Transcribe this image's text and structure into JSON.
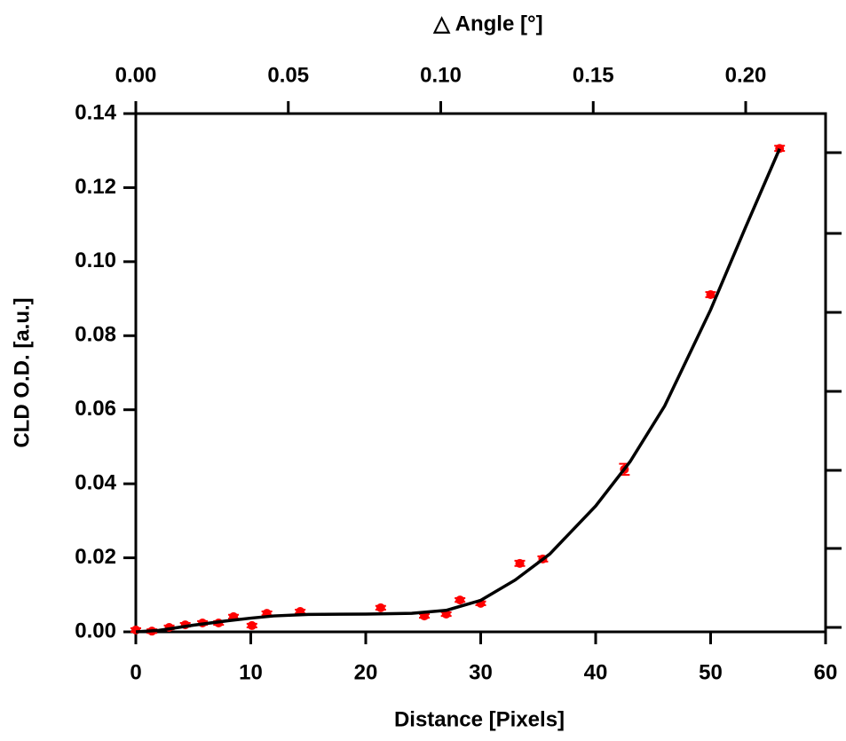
{
  "chart_data": {
    "type": "scatter",
    "title": "△  Angle [°]",
    "x_label": "Distance [Pixels]",
    "y_label": "CLD O.D. [a.u.]",
    "xlim": [
      0,
      60
    ],
    "xticks": [
      0,
      10,
      20,
      30,
      40,
      50,
      60
    ],
    "x2lim": [
      0,
      0.2262
    ],
    "x2ticks": [
      {
        "value": 0,
        "label": "0.00"
      },
      {
        "value": 0.05,
        "label": "0.05"
      },
      {
        "value": 0.1,
        "label": "0.10"
      },
      {
        "value": 0.15,
        "label": "0.15"
      },
      {
        "value": 0.2,
        "label": "0.20"
      }
    ],
    "ylim": [
      0,
      0.14
    ],
    "yticks": [
      {
        "value": 0,
        "label": "0.00"
      },
      {
        "value": 0.02,
        "label": "0.02"
      },
      {
        "value": 0.04,
        "label": "0.04"
      },
      {
        "value": 0.06,
        "label": "0.06"
      },
      {
        "value": 0.08,
        "label": "0.08"
      },
      {
        "value": 0.1,
        "label": "0.10"
      },
      {
        "value": 0.12,
        "label": "0.12"
      },
      {
        "value": 0.14,
        "label": "0.14"
      }
    ],
    "series": [
      {
        "type": "scatter",
        "color": "#ff0000",
        "x": [
          0,
          1.4,
          2.9,
          4.3,
          5.8,
          7.2,
          8.5,
          10.1,
          11.4,
          14.3,
          21.3,
          25.1,
          27.0,
          28.2,
          30.0,
          33.4,
          35.4,
          42.5,
          50.0,
          56.0
        ],
        "values": [
          0.0005,
          0.0002,
          0.0012,
          0.0019,
          0.0024,
          0.0024,
          0.0041,
          0.0017,
          0.005,
          0.0055,
          0.0065,
          0.0043,
          0.0048,
          0.0086,
          0.0077,
          0.0185,
          0.0197,
          0.0439,
          0.0911,
          0.1306
        ],
        "errors": [
          0.0005,
          0.0005,
          0.0005,
          0.0005,
          0.0005,
          0.0005,
          0.0005,
          0.0005,
          0.0005,
          0.0005,
          0.0005,
          0.0005,
          0.0005,
          0.0005,
          0.0005,
          0.0007,
          0.0007,
          0.0015,
          0.0007,
          0.0007
        ]
      },
      {
        "type": "line",
        "color": "#000000",
        "x": [
          0,
          2,
          5,
          8,
          10,
          12,
          15,
          20,
          24,
          27,
          30,
          33,
          36,
          40,
          43,
          46,
          50,
          53,
          56
        ],
        "values": [
          0,
          0.0004,
          0.0018,
          0.003,
          0.0037,
          0.0043,
          0.0047,
          0.0048,
          0.005,
          0.0058,
          0.0085,
          0.014,
          0.021,
          0.034,
          0.046,
          0.061,
          0.087,
          0.109,
          0.1305
        ]
      }
    ]
  }
}
